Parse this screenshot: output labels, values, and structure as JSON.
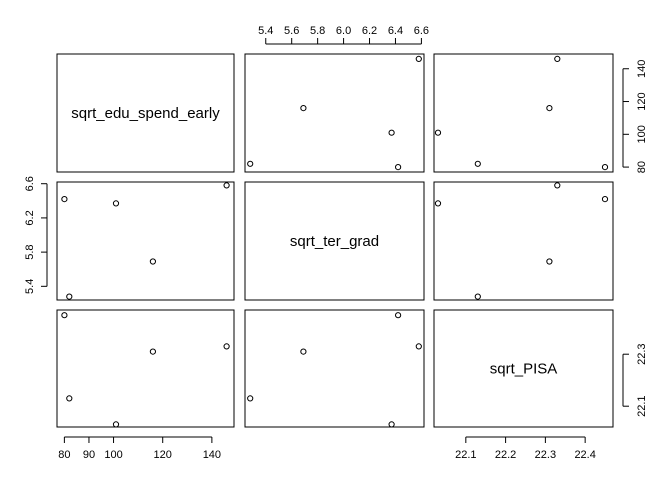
{
  "chart_data": {
    "type": "scatter",
    "subtype": "scatterplot-matrix",
    "grid": false,
    "variables": [
      {
        "name": "sqrt_edu_spend_early",
        "range": [
          77,
          149
        ],
        "ticks": [
          80,
          90,
          100,
          120,
          140
        ]
      },
      {
        "name": "sqrt_ter_grad",
        "range": [
          5.24,
          6.62
        ],
        "ticks": [
          5.4,
          5.6,
          5.8,
          6.0,
          6.2,
          6.4,
          6.6
        ]
      },
      {
        "name": "sqrt_PISA",
        "range": [
          22.02,
          22.47
        ],
        "ticks": [
          22.1,
          22.2,
          22.3,
          22.4
        ]
      }
    ],
    "axis_ticks": {
      "top_over_col2": {
        "values": [
          5.4,
          5.6,
          5.8,
          6.0,
          6.2,
          6.4,
          6.6
        ],
        "labels": [
          "5.4",
          "5.6",
          "5.8",
          "6.0",
          "6.2",
          "6.4",
          "6.6"
        ]
      },
      "right_of_row1": {
        "values": [
          80,
          100,
          120,
          140
        ],
        "labels": [
          "80",
          "100",
          "120",
          "140"
        ]
      },
      "left_of_row2": {
        "values": [
          5.4,
          5.8,
          6.2,
          6.6
        ],
        "labels": [
          "5.4",
          "5.8",
          "6.2",
          "6.6"
        ]
      },
      "bottom_under_col1": {
        "values": [
          80,
          90,
          100,
          120,
          140
        ],
        "labels": [
          "80",
          "90",
          "100",
          "120",
          "140"
        ]
      },
      "bottom_under_col3": {
        "values": [
          22.1,
          22.2,
          22.3,
          22.4
        ],
        "labels": [
          "22.1",
          "22.2",
          "22.3",
          "22.4"
        ]
      },
      "right_of_row3": {
        "values": [
          22.1,
          22.3
        ],
        "labels": [
          "22.1",
          "22.3"
        ]
      }
    },
    "observations": [
      {
        "sqrt_edu_spend_early": 80,
        "sqrt_ter_grad": 6.42,
        "sqrt_PISA": 22.45
      },
      {
        "sqrt_edu_spend_early": 82,
        "sqrt_ter_grad": 5.28,
        "sqrt_PISA": 22.13
      },
      {
        "sqrt_edu_spend_early": 101,
        "sqrt_ter_grad": 6.37,
        "sqrt_PISA": 22.03
      },
      {
        "sqrt_edu_spend_early": 116,
        "sqrt_ter_grad": 5.69,
        "sqrt_PISA": 22.31
      },
      {
        "sqrt_edu_spend_early": 146,
        "sqrt_ter_grad": 6.58,
        "sqrt_PISA": 22.33
      }
    ]
  }
}
